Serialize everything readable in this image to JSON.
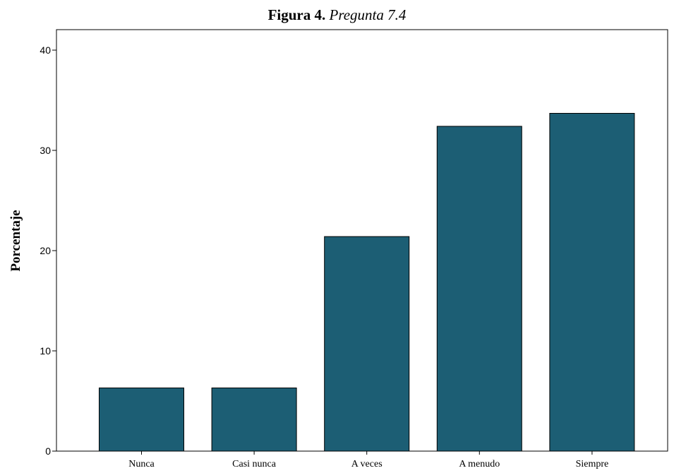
{
  "title": {
    "prefix": "Figura 4.",
    "text": "Pregunta 7.4"
  },
  "chart_data": {
    "type": "bar",
    "categories": [
      "Nunca",
      "Casi nunca",
      "A veces",
      "A menudo",
      "Siempre"
    ],
    "values": [
      6.3,
      6.3,
      21.4,
      32.4,
      33.7
    ],
    "xlabel": "",
    "ylabel": "Porcentaje",
    "ylim": [
      0,
      40
    ],
    "yticks": [
      0,
      10,
      20,
      30,
      40
    ],
    "bar_color": "#1c5e74",
    "bar_edge_color": "#000000",
    "grid": false
  }
}
